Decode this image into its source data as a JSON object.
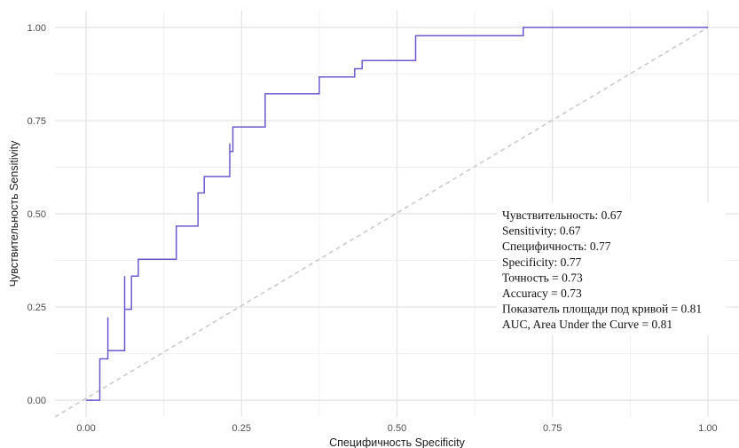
{
  "chart_data": {
    "type": "line",
    "title": "",
    "xlabel": "Специфичность  Specificity",
    "ylabel": "Чувствительность  Sensitivity",
    "xlim": [
      -0.05,
      1.05
    ],
    "ylim": [
      -0.045,
      1.045
    ],
    "x_ticks": [
      "0.00",
      "0.25",
      "0.50",
      "0.75",
      "1.00"
    ],
    "y_ticks": [
      "0.00",
      "0.25",
      "0.50",
      "0.75",
      "1.00"
    ],
    "grid": true,
    "series": [
      {
        "name": "",
        "color": "#6a5acd",
        "step": true,
        "x": [
          0.0,
          0.022,
          0.022,
          0.035,
          0.035,
          0.035,
          0.035,
          0.062,
          0.062,
          0.062,
          0.062,
          0.073,
          0.073,
          0.084,
          0.084,
          0.145,
          0.145,
          0.18,
          0.18,
          0.19,
          0.19,
          0.231,
          0.231,
          0.231,
          0.231,
          0.236,
          0.236,
          0.288,
          0.288,
          0.375,
          0.375,
          0.432,
          0.432,
          0.444,
          0.444,
          0.53,
          0.53,
          0.703,
          0.703,
          1.0
        ],
        "y": [
          0.0,
          0.0,
          0.111,
          0.111,
          0.222,
          0.133,
          0.133,
          0.133,
          0.333,
          0.244,
          0.244,
          0.244,
          0.333,
          0.333,
          0.378,
          0.378,
          0.467,
          0.467,
          0.556,
          0.556,
          0.6,
          0.6,
          0.689,
          0.667,
          0.667,
          0.667,
          0.733,
          0.733,
          0.822,
          0.822,
          0.867,
          0.867,
          0.889,
          0.889,
          0.911,
          0.911,
          0.978,
          0.978,
          1.0,
          1.0
        ]
      }
    ],
    "reference_line": {
      "x": [
        -0.05,
        1.0
      ],
      "y": [
        -0.045,
        1.0
      ],
      "color": "#c8c8c8",
      "style": "dashed"
    },
    "annotations": [
      "Чувствительность: 0.67",
      "Sensitivity: 0.67",
      "Специфичность: 0.77",
      "Specificity: 0.77",
      "Точность = 0.73",
      "Accuracy = 0.73",
      "Показатель площади под кривой = 0.81",
      "AUC, Area Under the Curve = 0.81"
    ]
  }
}
